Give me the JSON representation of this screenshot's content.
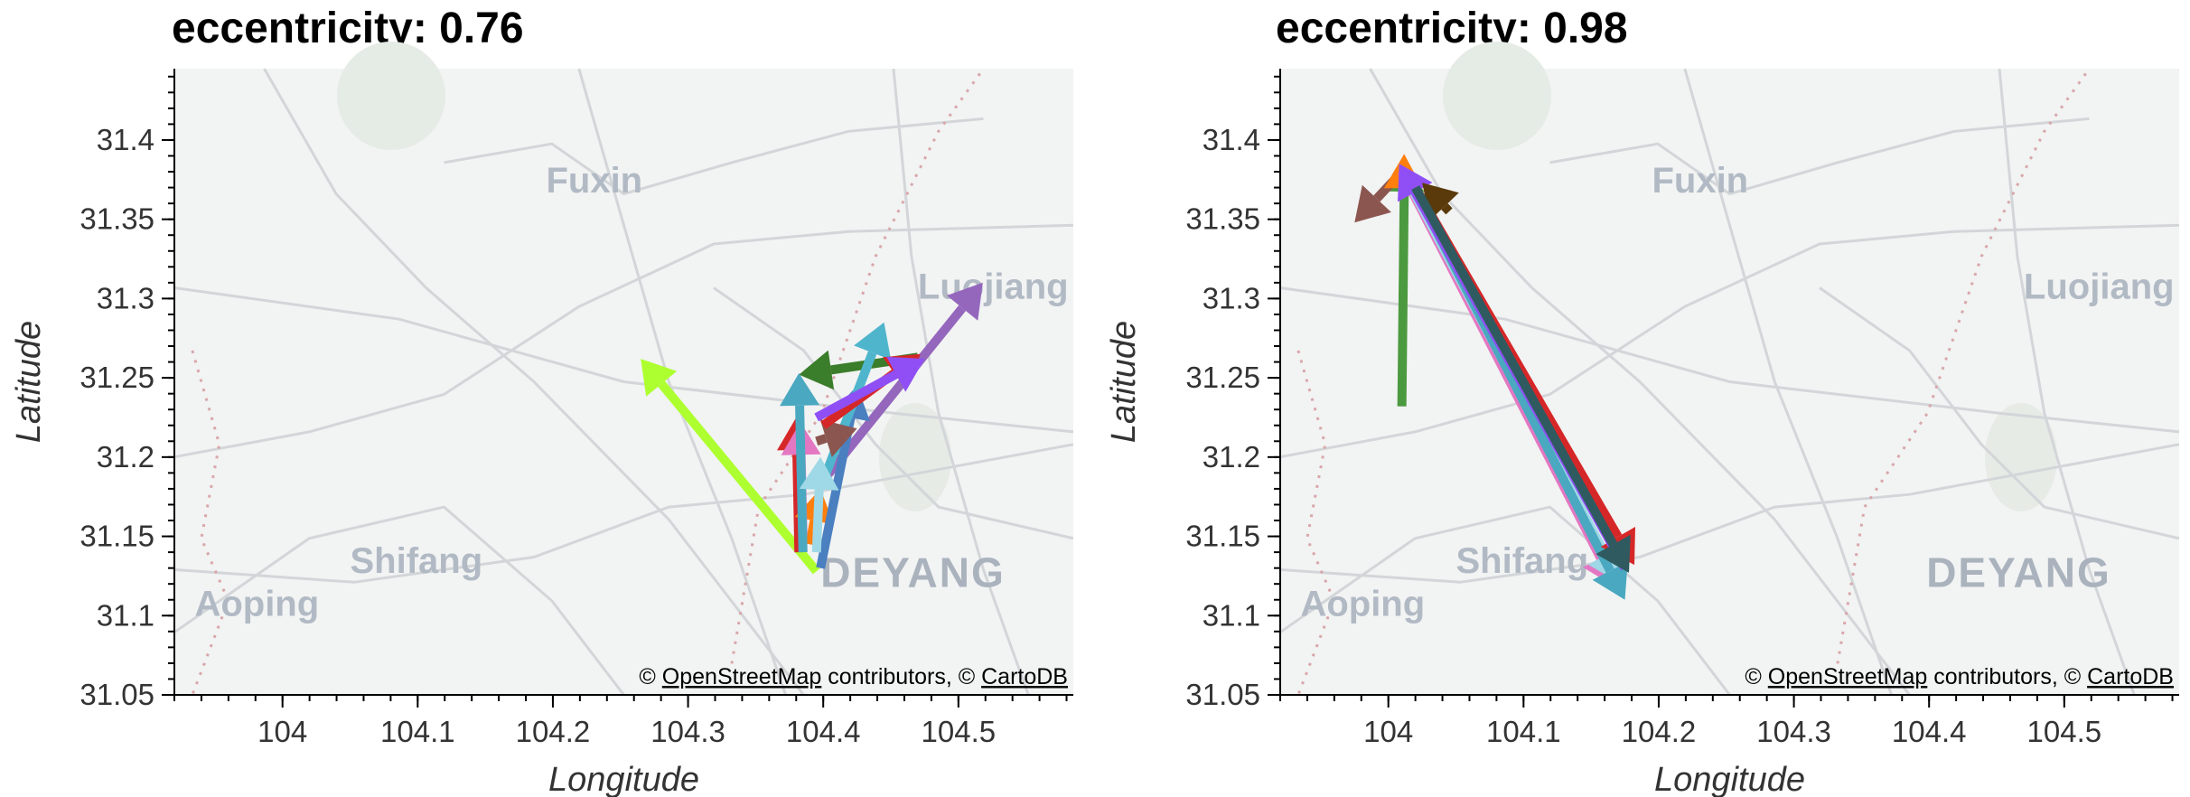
{
  "attribution": {
    "prefix": "© ",
    "osm": "OpenStreetMap",
    "middle": " contributors, © ",
    "carto": "CartoDB"
  },
  "map_places": [
    "Fuxin",
    "Luojiang",
    "Shifang",
    "DEYANG",
    "Aoping"
  ],
  "chart_data": [
    {
      "type": "scatter",
      "title": "eccentricity: 0.76",
      "xlabel": "Longitude",
      "ylabel": "Latitude",
      "xlim": [
        103.92,
        104.585
      ],
      "ylim": [
        31.05,
        31.445
      ],
      "xticks": [
        104,
        104.1,
        104.2,
        104.3,
        104.4,
        104.5
      ],
      "xtick_labels": [
        "104",
        "104.1",
        "104.2",
        "104.3",
        "104.4",
        "104.5"
      ],
      "yticks": [
        31.05,
        31.1,
        31.15,
        31.2,
        31.25,
        31.3,
        31.35,
        31.4
      ],
      "ytick_labels": [
        "31.05",
        "31.1",
        "31.15",
        "31.2",
        "31.25",
        "31.3",
        "31.35",
        "31.4"
      ],
      "grid": false,
      "arrows": [
        {
          "color": "#adff2f",
          "from": [
            104.395,
            31.128
          ],
          "to": [
            104.265,
            31.262
          ]
        },
        {
          "color": "#3a7d2a",
          "from": [
            104.47,
            31.263
          ],
          "to": [
            104.382,
            31.252
          ]
        },
        {
          "color": "#9467bd",
          "from": [
            104.395,
            31.18
          ],
          "to": [
            104.518,
            31.31
          ]
        },
        {
          "color": "#d62728",
          "from": [
            104.382,
            31.14
          ],
          "to": [
            104.38,
            31.225
          ]
        },
        {
          "color": "#ff7f0e",
          "from": [
            104.39,
            31.145
          ],
          "to": [
            104.398,
            31.18
          ]
        },
        {
          "color": "#e377c2",
          "from": [
            104.385,
            31.15
          ],
          "to": [
            104.383,
            31.222
          ]
        },
        {
          "color": "#4a7fc0",
          "from": [
            104.398,
            31.13
          ],
          "to": [
            104.425,
            31.245
          ]
        },
        {
          "color": "#4fb5cc",
          "from": [
            104.4,
            31.185
          ],
          "to": [
            104.445,
            31.285
          ]
        },
        {
          "color": "#8c5650",
          "from": [
            104.395,
            31.21
          ],
          "to": [
            104.425,
            31.218
          ]
        },
        {
          "color": "#d62728",
          "from": [
            104.4,
            31.22
          ],
          "to": [
            104.472,
            31.265
          ]
        },
        {
          "color": "#8f4ff5",
          "from": [
            104.395,
            31.225
          ],
          "to": [
            104.475,
            31.262
          ]
        },
        {
          "color": "#4aa8c0",
          "from": [
            104.385,
            31.14
          ],
          "to": [
            104.382,
            31.253
          ]
        },
        {
          "color": "#9fd8e6",
          "from": [
            104.395,
            31.14
          ],
          "to": [
            104.398,
            31.2
          ]
        }
      ]
    },
    {
      "type": "scatter",
      "title": "eccentricity: 0.98",
      "xlabel": "Longitude",
      "ylabel": "Latitude",
      "xlim": [
        103.92,
        104.585
      ],
      "ylim": [
        31.05,
        31.445
      ],
      "xticks": [
        104,
        104.1,
        104.2,
        104.3,
        104.4,
        104.5
      ],
      "xtick_labels": [
        "104",
        "104.1",
        "104.2",
        "104.3",
        "104.4",
        "104.5"
      ],
      "yticks": [
        31.05,
        31.1,
        31.15,
        31.2,
        31.25,
        31.3,
        31.35,
        31.4
      ],
      "ytick_labels": [
        "31.05",
        "31.1",
        "31.15",
        "31.2",
        "31.25",
        "31.3",
        "31.35",
        "31.4"
      ],
      "grid": false,
      "arrows": [
        {
          "color": "#4c9a3f",
          "from": [
            104.01,
            31.232
          ],
          "to": [
            104.012,
            31.388
          ]
        },
        {
          "color": "#8c5650",
          "from": [
            104.01,
            31.38
          ],
          "to": [
            103.975,
            31.348
          ]
        },
        {
          "color": "#ff7f0e",
          "from": [
            104.015,
            31.375
          ],
          "to": [
            104.025,
            31.37
          ]
        },
        {
          "color": "#e377c2",
          "from": [
            104.01,
            31.38
          ],
          "to": [
            104.168,
            31.118
          ]
        },
        {
          "color": "#9fd8e6",
          "from": [
            104.012,
            31.378
          ],
          "to": [
            104.172,
            31.12
          ]
        },
        {
          "color": "#4aa8c0",
          "from": [
            104.015,
            31.377
          ],
          "to": [
            104.175,
            31.11
          ]
        },
        {
          "color": "#d62728",
          "from": [
            104.02,
            31.37
          ],
          "to": [
            104.182,
            31.132
          ]
        },
        {
          "color": "#8f4ff5",
          "from": [
            104.175,
            31.13
          ],
          "to": [
            104.008,
            31.385
          ]
        },
        {
          "color": "#5a3a0a",
          "from": [
            104.045,
            31.355
          ],
          "to": [
            104.025,
            31.373
          ]
        },
        {
          "color": "#2f5a60",
          "from": [
            104.02,
            31.37
          ],
          "to": [
            104.178,
            31.127
          ]
        }
      ]
    }
  ]
}
